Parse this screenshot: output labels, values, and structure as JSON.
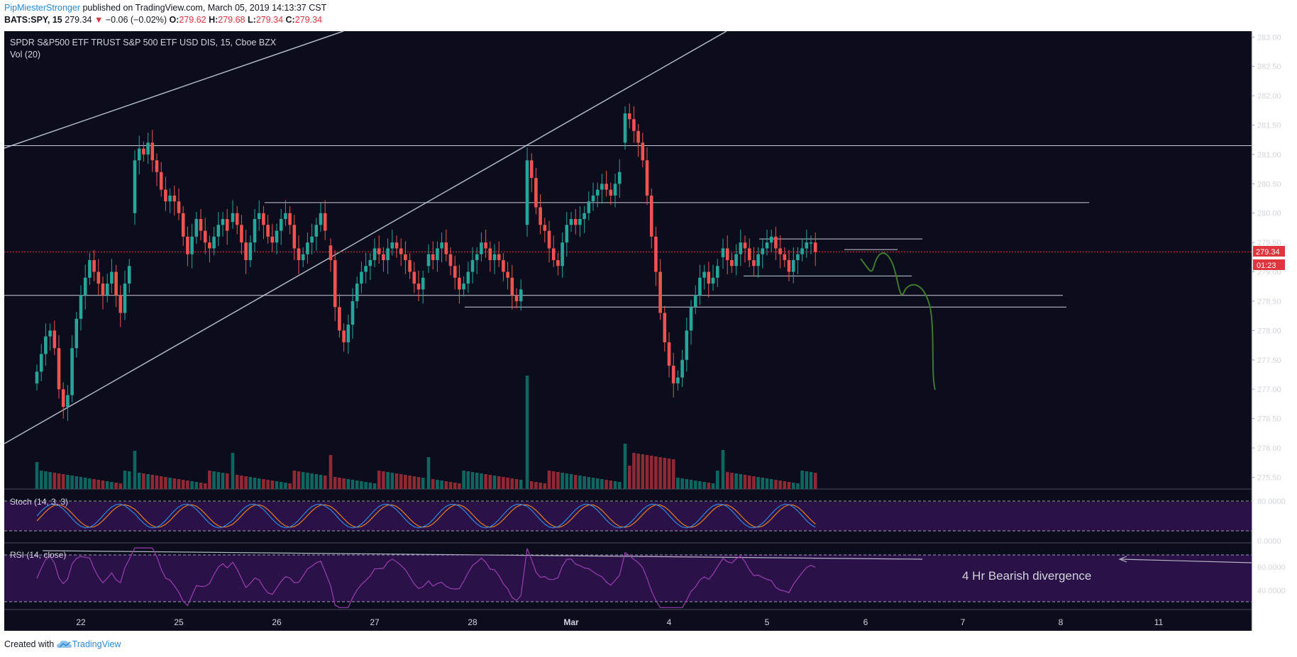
{
  "header": {
    "author": "PipMiesterStronger",
    "published": " published on TradingView.com, March 05, 2019 14:13:37 CST",
    "symbol": "BATS:SPY, 15",
    "last": "279.34",
    "change_arrow": "▼",
    "change": "−0.06 (−0.02%)",
    "o_label": "O:",
    "o": "279.62",
    "h_label": "H:",
    "h": "279.68",
    "l_label": "L:",
    "l": "279.34",
    "c_label": "C:",
    "c": "279.34"
  },
  "legend": {
    "title": "SPDR S&P500 ETF TRUST S&P 500 ETF USD DIS, 15, Cboe BZX",
    "volume": "Vol (20)",
    "stoch": "Stoch (14, 3, 3)",
    "rsi": "RSI (14, close)"
  },
  "price_badge": "279.34",
  "countdown_badge": "01:23",
  "annotation": "4 Hr Bearish divergence",
  "footer": {
    "created": "Created with ",
    "brand": "TradingView"
  },
  "colors": {
    "background": "#0b0c1c",
    "up": "#26a69a",
    "down": "#ef5350",
    "up_volume": "#0f6660",
    "down_volume": "#8f2a35",
    "projection": "#3d7a2a",
    "stoch_k": "#2e86de",
    "stoch_d": "#e67e22",
    "rsi": "#9b3fb0",
    "indicator_band": "#2a1148",
    "trendline": "#b3b6c4"
  },
  "chart_data": {
    "type": "candlestick",
    "price_axis": {
      "min": 275.3,
      "max": 283.1,
      "ticks": [
        "283.00",
        "282.50",
        "282.00",
        "281.50",
        "281.00",
        "280.50",
        "280.00",
        "279.50",
        "279.00",
        "278.50",
        "278.00",
        "277.50",
        "277.00",
        "276.50",
        "276.00",
        "275.50"
      ]
    },
    "time_axis_labels": [
      "22",
      "25",
      "26",
      "27",
      "28",
      "Mar",
      "4",
      "5",
      "6",
      "7",
      "8",
      "11"
    ],
    "sessions": [
      {
        "label": "22",
        "closes": [
          277.3,
          277.6,
          277.9,
          278.0,
          277.7,
          277.0,
          276.7,
          276.9,
          277.7,
          278.2,
          278.6,
          278.9,
          279.2,
          279.0,
          278.8,
          278.6,
          278.8,
          279.0,
          278.6,
          278.3,
          278.8,
          279.1
        ]
      },
      {
        "label": "25",
        "closes": [
          280.9,
          281.1,
          281.0,
          281.2,
          280.9,
          280.7,
          280.4,
          280.2,
          280.3,
          280.2,
          280.0,
          279.6,
          279.3,
          279.6,
          279.9,
          279.7,
          279.5,
          279.4,
          279.6,
          279.8,
          279.9,
          279.7
        ]
      },
      {
        "label": "26",
        "closes": [
          280.0,
          279.8,
          279.5,
          279.2,
          279.5,
          279.9,
          280.0,
          279.8,
          279.6,
          279.5,
          279.7,
          279.9,
          280.0,
          279.8,
          279.4,
          279.2,
          279.3,
          279.5,
          279.6,
          279.8,
          280.0,
          279.7
        ]
      },
      {
        "label": "27",
        "closes": [
          279.2,
          278.4,
          278.0,
          277.8,
          278.1,
          278.5,
          278.8,
          279.0,
          279.1,
          279.2,
          279.4,
          279.3,
          279.2,
          279.4,
          279.5,
          279.4,
          279.3,
          279.2,
          279.0,
          278.8,
          278.7,
          278.9
        ]
      },
      {
        "label": "28",
        "closes": [
          279.3,
          279.2,
          279.4,
          279.5,
          279.3,
          279.1,
          278.9,
          278.7,
          278.8,
          279.0,
          279.2,
          279.3,
          279.5,
          279.4,
          279.2,
          279.3,
          279.2,
          279.0,
          278.9,
          278.6,
          278.5,
          278.7
        ]
      },
      {
        "label": "Mar",
        "closes": [
          280.9,
          280.6,
          280.1,
          279.8,
          279.7,
          279.4,
          279.2,
          279.1,
          279.5,
          279.8,
          279.9,
          279.8,
          279.9,
          280.0,
          280.2,
          280.3,
          280.4,
          280.5,
          280.4,
          280.3,
          280.5,
          280.7
        ]
      },
      {
        "label": "4",
        "closes": [
          281.7,
          281.6,
          281.4,
          281.2,
          280.9,
          280.3,
          279.6,
          279.0,
          278.3,
          277.8,
          277.4,
          277.1,
          277.2,
          277.5,
          278.0,
          278.4,
          278.6,
          278.9,
          279.0,
          278.8,
          278.9,
          279.1
        ]
      },
      {
        "label": "5",
        "closes": [
          279.4,
          279.2,
          279.1,
          279.3,
          279.5,
          279.4,
          279.2,
          279.1,
          279.3,
          279.4,
          279.5,
          279.6,
          279.4,
          279.3,
          279.2,
          279.0,
          279.2,
          279.3,
          279.4,
          279.5,
          279.5,
          279.34
        ]
      }
    ],
    "volume_spikes": {
      "label": "Mar",
      "max_relative": 1.0
    },
    "stoch_levels": {
      "upper": 80,
      "lower": 20,
      "ticks": [
        "80.0000",
        "0.0000"
      ]
    },
    "rsi_levels": {
      "upper": 70,
      "lower": 30,
      "ticks": [
        "60.0000",
        "40.0000"
      ]
    },
    "horizontal_levels": [
      281.15,
      280.18,
      279.56,
      279.38,
      278.93,
      278.6,
      278.4
    ],
    "current_price": 279.34
  }
}
